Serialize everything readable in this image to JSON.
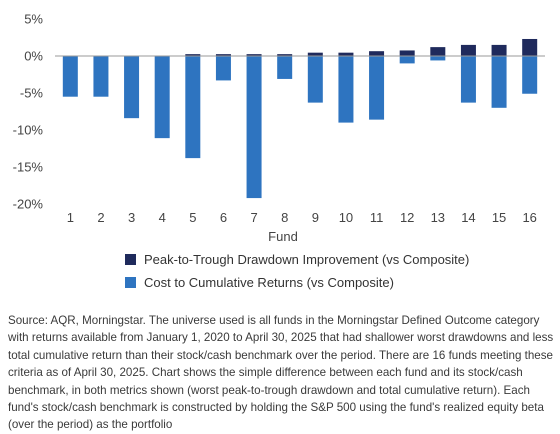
{
  "chart_data": {
    "type": "bar",
    "categories": [
      "1",
      "2",
      "3",
      "4",
      "5",
      "6",
      "7",
      "8",
      "9",
      "10",
      "11",
      "12",
      "13",
      "14",
      "15",
      "16"
    ],
    "series": [
      {
        "name": "Peak-to-Trough Drawdown Improvement (vs Composite)",
        "color": "#1f2a5c",
        "values": [
          0.05,
          0.05,
          0.05,
          0.05,
          0.25,
          0.25,
          0.25,
          0.25,
          0.45,
          0.45,
          0.65,
          0.75,
          1.2,
          1.5,
          1.5,
          2.3
        ]
      },
      {
        "name": "Cost to Cumulative Returns (vs Composite)",
        "color": "#2e74c0",
        "values": [
          -5.5,
          -5.5,
          -8.4,
          -11.1,
          -13.8,
          -3.3,
          -19.2,
          -3.1,
          -6.3,
          -9.0,
          -8.6,
          -1.0,
          -0.6,
          -6.3,
          -7.0,
          -5.1
        ]
      }
    ],
    "xlabel": "Fund",
    "ylabel": "",
    "ylim": [
      -20,
      5
    ],
    "yticks": [
      5,
      0,
      -5,
      -10,
      -15,
      -20
    ],
    "ytick_labels": [
      "5%",
      "0%",
      "-5%",
      "-10%",
      "-15%",
      "-20%"
    ],
    "grid": false,
    "legend_position": "bottom"
  },
  "footnote": {
    "text": "Source: AQR, Morningstar. The universe used is all funds in the Morningstar Defined Outcome category with returns available from January 1, 2020 to April 30, 2025 that had shallower worst drawdowns and less total cumulative return than their stock/cash benchmark over the period. There are 16 funds meeting these criteria as of April 30, 2025. Chart shows the simple difference between each fund and its stock/cash benchmark, in both metrics shown (worst peak-to-trough drawdown and total cumulative return). Each fund's stock/cash benchmark is constructed by holding the S&P 500 using the fund's realized equity beta (over the period) as the portfolio"
  }
}
